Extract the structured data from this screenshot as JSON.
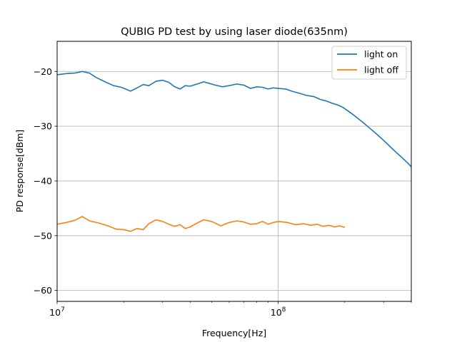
{
  "chart_data": {
    "type": "line",
    "title": "QUBIG PD test by using laser diode(635nm)",
    "xlabel": "Frequency[Hz]",
    "ylabel": "PD response[dBm]",
    "xscale": "log",
    "xlim": [
      10000000,
      400000000
    ],
    "ylim": [
      -62,
      -14.5
    ],
    "xticks": [
      {
        "value": 10000000,
        "label": "10^7"
      },
      {
        "value": 100000000,
        "label": "10^8"
      }
    ],
    "yticks": [
      {
        "value": -20,
        "label": "−20"
      },
      {
        "value": -30,
        "label": "−30"
      },
      {
        "value": -40,
        "label": "−40"
      },
      {
        "value": -50,
        "label": "−50"
      },
      {
        "value": -60,
        "label": "−60"
      }
    ],
    "grid": true,
    "legend_position": "top-right",
    "series": [
      {
        "name": "light on",
        "color": "#1f77b4",
        "x": [
          10000000,
          11000000,
          12000000,
          13000000,
          14000000,
          15000000,
          16500000,
          18000000,
          19500000,
          21500000,
          23000000,
          24500000,
          26000000,
          28000000,
          30000000,
          32000000,
          34000000,
          36000000,
          38000000,
          40000000,
          43000000,
          46000000,
          49000000,
          52000000,
          56000000,
          60000000,
          65000000,
          70000000,
          75000000,
          80000000,
          85000000,
          90000000,
          95000000,
          100000000,
          108000000,
          115000000,
          125000000,
          135000000,
          145000000,
          155000000,
          165000000,
          175000000,
          185000000,
          195000000,
          205000000,
          220000000,
          240000000,
          260000000,
          280000000,
          300000000,
          320000000,
          340000000,
          360000000,
          380000000,
          400000000
        ],
        "y": [
          -20.6,
          -20.4,
          -20.3,
          -20.0,
          -20.3,
          -21.1,
          -21.9,
          -22.6,
          -22.9,
          -23.6,
          -23.0,
          -22.4,
          -22.6,
          -21.8,
          -21.6,
          -22.0,
          -22.8,
          -23.2,
          -22.6,
          -22.7,
          -22.3,
          -21.9,
          -22.2,
          -22.5,
          -22.8,
          -22.6,
          -22.3,
          -22.5,
          -23.1,
          -22.8,
          -22.9,
          -23.2,
          -23.0,
          -23.1,
          -23.2,
          -23.6,
          -24.0,
          -24.4,
          -24.6,
          -25.1,
          -25.4,
          -25.8,
          -26.1,
          -26.5,
          -27.1,
          -28.0,
          -29.2,
          -30.4,
          -31.5,
          -32.6,
          -33.7,
          -34.7,
          -35.6,
          -36.5,
          -37.4
        ]
      },
      {
        "name": "light off",
        "color": "#ff7f0e",
        "x": [
          10000000,
          11000000,
          12000000,
          13000000,
          14000000,
          15500000,
          17000000,
          18500000,
          20000000,
          21500000,
          23000000,
          24500000,
          26000000,
          28000000,
          30000000,
          32000000,
          34000000,
          36000000,
          38000000,
          40000000,
          43000000,
          46000000,
          50000000,
          55000000,
          60000000,
          65000000,
          70000000,
          75000000,
          80000000,
          85000000,
          90000000,
          95000000,
          100000000,
          110000000,
          120000000,
          130000000,
          140000000,
          150000000,
          160000000,
          170000000,
          180000000,
          190000000,
          200000000
        ],
        "y": [
          -47.9,
          -47.6,
          -47.2,
          -46.5,
          -47.3,
          -47.7,
          -48.2,
          -48.8,
          -48.9,
          -49.2,
          -48.7,
          -48.9,
          -47.8,
          -47.1,
          -47.4,
          -47.9,
          -48.3,
          -48.0,
          -48.7,
          -48.4,
          -47.7,
          -47.1,
          -47.4,
          -48.2,
          -47.6,
          -47.3,
          -47.5,
          -47.9,
          -47.8,
          -47.4,
          -47.9,
          -47.6,
          -47.4,
          -47.6,
          -48.0,
          -47.8,
          -48.1,
          -47.9,
          -48.3,
          -48.1,
          -48.4,
          -48.2,
          -48.5
        ]
      }
    ]
  }
}
